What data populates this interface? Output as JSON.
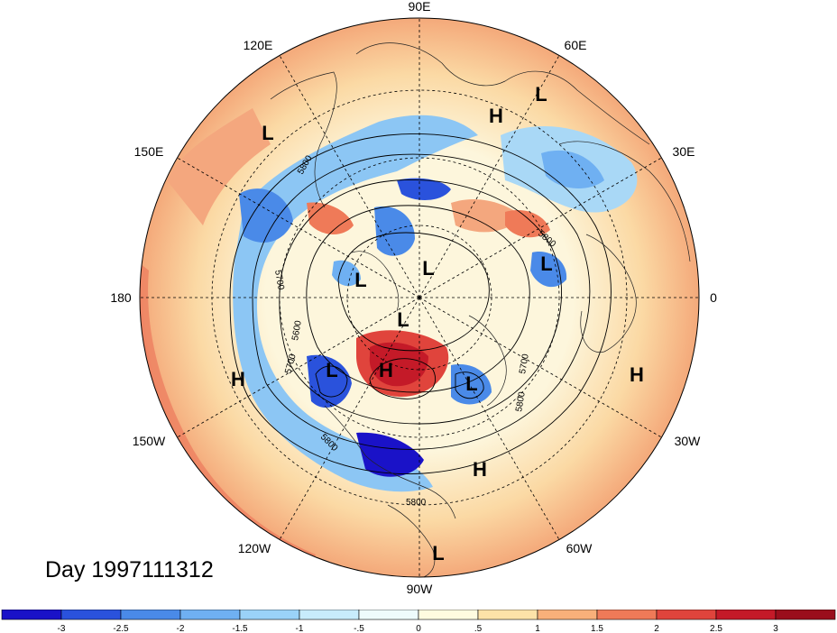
{
  "title_text": "Day 1997111312",
  "longitude_labels": [
    "90E",
    "60E",
    "30E",
    "0",
    "30W",
    "60W",
    "90W",
    "120W",
    "150W",
    "180",
    "150E",
    "120E"
  ],
  "contour_labels": [
    "5800",
    "5700",
    "5600",
    "5700",
    "5800",
    "5800",
    "5700",
    "5800",
    "5800"
  ],
  "pressure_centers": [
    {
      "type": "L"
    },
    {
      "type": "H"
    },
    {
      "type": "L"
    },
    {
      "type": "L"
    },
    {
      "type": "L"
    },
    {
      "type": "L"
    },
    {
      "type": "L"
    },
    {
      "type": "H"
    },
    {
      "type": "L"
    },
    {
      "type": "L"
    },
    {
      "type": "H"
    },
    {
      "type": "H"
    },
    {
      "type": "H"
    },
    {
      "type": "L"
    }
  ],
  "colorbar": {
    "ticks": [
      "-3",
      "-2.5",
      "-2",
      "-1.5",
      "-1",
      "-.5",
      "0",
      ".5",
      "1",
      "1.5",
      "2",
      "2.5",
      "3"
    ],
    "colors": [
      "#1a12c8",
      "#2a52dc",
      "#4a8ae8",
      "#6fb0f2",
      "#9ad2f8",
      "#c8ecfc",
      "#eefbfc",
      "#fffbe0",
      "#fde2a8",
      "#f8b07a",
      "#ef7a58",
      "#e0443c",
      "#c41a28",
      "#9a0e1c"
    ]
  }
}
